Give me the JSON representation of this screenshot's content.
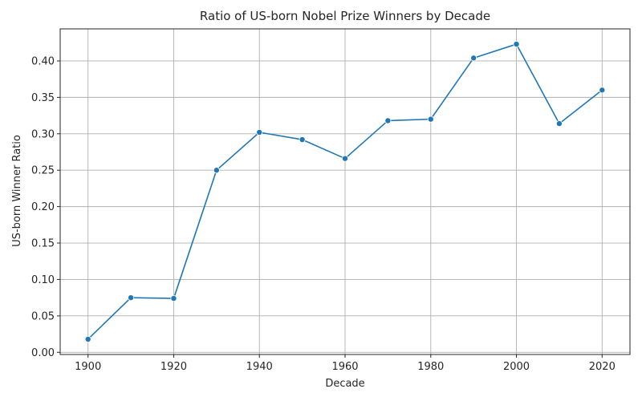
{
  "chart_data": {
    "type": "line",
    "title": "Ratio of US-born Nobel Prize Winners by Decade",
    "xlabel": "Decade",
    "ylabel": "US-born Winner Ratio",
    "x": [
      1900,
      1910,
      1920,
      1930,
      1940,
      1950,
      1960,
      1970,
      1980,
      1990,
      2000,
      2010,
      2020
    ],
    "series": [
      {
        "values": [
          0.018,
          0.075,
          0.074,
          0.25,
          0.302,
          0.292,
          0.266,
          0.318,
          0.32,
          0.404,
          0.423,
          0.314,
          0.36
        ]
      }
    ],
    "xlim": [
      1893.5,
      2026.5
    ],
    "ylim": [
      -0.003,
      0.444
    ],
    "xticks": [
      1900,
      1920,
      1940,
      1960,
      1980,
      2000,
      2020
    ],
    "xtick_labels": [
      "1900",
      "1920",
      "1940",
      "1960",
      "1980",
      "2000",
      "2020"
    ],
    "yticks": [
      0.0,
      0.05,
      0.1,
      0.15,
      0.2,
      0.25,
      0.3,
      0.35,
      0.4
    ],
    "ytick_labels": [
      "0.00",
      "0.05",
      "0.10",
      "0.15",
      "0.20",
      "0.25",
      "0.30",
      "0.35",
      "0.40"
    ],
    "grid": true,
    "line_color": "#1f77b4",
    "grid_color": "#b0b0b0",
    "marker": "circle"
  }
}
